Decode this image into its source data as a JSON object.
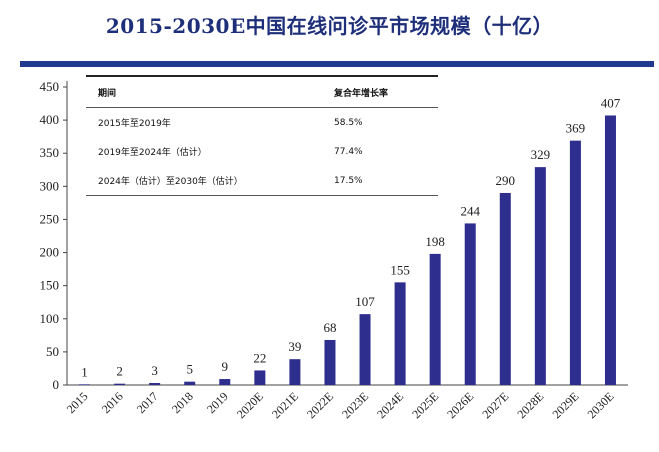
{
  "title": "2015-2030E中国在线问诊平市场规模（十亿）",
  "cagr_table": {
    "headers": [
      "期间",
      "复合年增长率"
    ],
    "rows": [
      {
        "period": "2015年至2019年",
        "rate": "58.5%"
      },
      {
        "period": "2019年至2024年（估计）",
        "rate": "77.4%"
      },
      {
        "period": "2024年（估计）至2030年（估计）",
        "rate": "17.5%"
      }
    ]
  },
  "colors": {
    "bar": "#2e2e8f",
    "title": "#1e2f7a",
    "band": "#1f3a8f"
  },
  "chart_data": {
    "type": "bar",
    "title": "2015-2030E中国在线问诊平市场规模（十亿）",
    "categories": [
      "2015",
      "2016",
      "2017",
      "2018",
      "2019",
      "2020E",
      "2021E",
      "2022E",
      "2023E",
      "2024E",
      "2025E",
      "2026E",
      "2027E",
      "2028E",
      "2029E",
      "2030E"
    ],
    "values": [
      1,
      2,
      3,
      5,
      9,
      22,
      39,
      68,
      107,
      155,
      198,
      244,
      290,
      329,
      369,
      407
    ],
    "data_labels": [
      "1",
      "2",
      "3",
      "5",
      "9",
      "22",
      "39",
      "68",
      "107",
      "155",
      "198",
      "244",
      "290",
      "329",
      "369",
      "407"
    ],
    "ylim": [
      0,
      450
    ],
    "yticks": [
      0,
      50,
      100,
      150,
      200,
      250,
      300,
      350,
      400,
      450
    ],
    "grid": false,
    "legend": "none"
  }
}
